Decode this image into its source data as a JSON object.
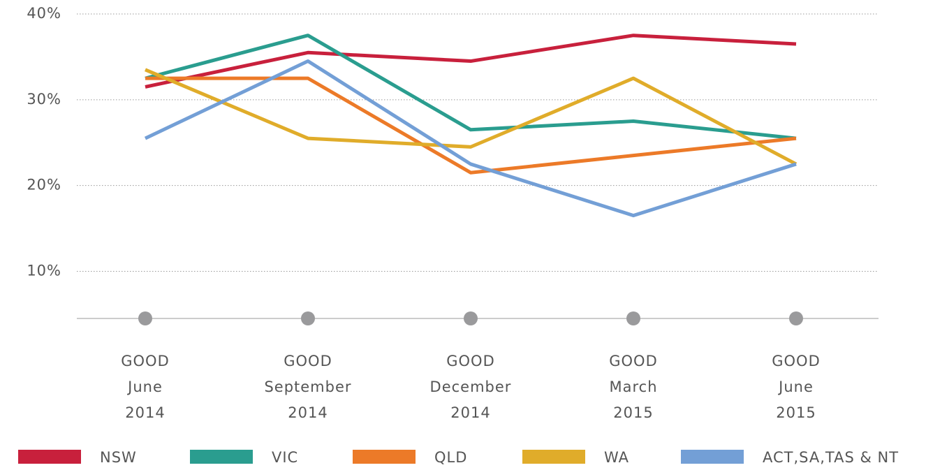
{
  "chart_data": {
    "type": "line",
    "categories": [
      [
        "GOOD",
        "June",
        "2014"
      ],
      [
        "GOOD",
        "September",
        "2014"
      ],
      [
        "GOOD",
        "December",
        "2014"
      ],
      [
        "GOOD",
        "March",
        "2015"
      ],
      [
        "GOOD",
        "June",
        "2015"
      ]
    ],
    "series": [
      {
        "name": "NSW",
        "color": "#c8203c",
        "values": [
          31.5,
          35.5,
          34.5,
          37.5,
          36.5
        ]
      },
      {
        "name": "VIC",
        "color": "#2a9d8f",
        "values": [
          32.5,
          37.5,
          26.5,
          27.5,
          25.5
        ]
      },
      {
        "name": "QLD",
        "color": "#ec7a28",
        "values": [
          32.5,
          32.5,
          21.5,
          23.5,
          25.5
        ]
      },
      {
        "name": "WA",
        "color": "#e0ac2a",
        "values": [
          33.5,
          25.5,
          24.5,
          32.5,
          22.5
        ]
      },
      {
        "name": "ACT,SA,TAS & NT",
        "color": "#739fd6",
        "values": [
          25.5,
          34.5,
          22.5,
          16.5,
          22.5
        ]
      }
    ],
    "ylim": [
      4.5,
      40
    ],
    "yticks": [
      {
        "value": 10,
        "label": "10%"
      },
      {
        "value": 20,
        "label": "20%"
      },
      {
        "value": 30,
        "label": "30%"
      },
      {
        "value": 40,
        "label": "40%"
      }
    ],
    "grid": true
  }
}
